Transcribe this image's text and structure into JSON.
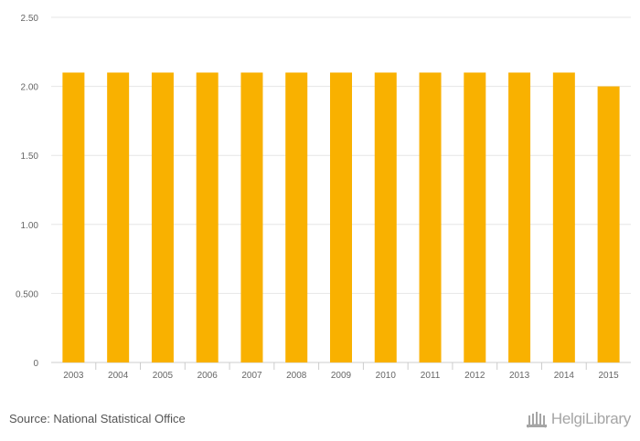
{
  "chart_data": {
    "type": "bar",
    "categories": [
      "2003",
      "2004",
      "2005",
      "2006",
      "2007",
      "2008",
      "2009",
      "2010",
      "2011",
      "2012",
      "2013",
      "2014",
      "2015"
    ],
    "values": [
      2.1,
      2.1,
      2.1,
      2.1,
      2.1,
      2.1,
      2.1,
      2.1,
      2.1,
      2.1,
      2.1,
      2.1,
      2.0
    ],
    "ylim": [
      0,
      2.5
    ],
    "yticks": [
      0,
      0.5,
      1.0,
      1.5,
      2.0,
      2.5
    ],
    "ytick_labels": [
      "0",
      "0.500",
      "1.00",
      "1.50",
      "2.00",
      "2.50"
    ],
    "bar_color": "#F9B100",
    "grid": true,
    "title": "",
    "xlabel": "",
    "ylabel": ""
  },
  "footer": {
    "source": "Source: National Statistical Office",
    "brand": "HelgiLibrary",
    "brand_icon": "library-building-icon"
  }
}
